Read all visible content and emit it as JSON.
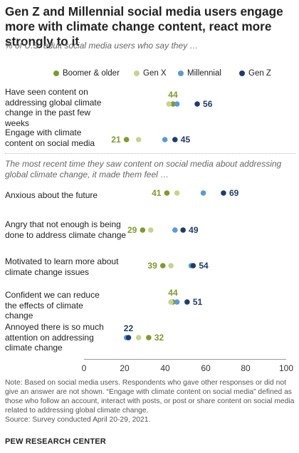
{
  "header": {
    "title": "Gen Z and Millennial social media users engage more with climate change content, react more strongly to it",
    "subtitle": "% of U.S. adult social media users who say they …"
  },
  "section_note": "The most recent time they saw content on social media about addressing global climate change, it made them feel …",
  "footer": {
    "note": "Note: Based on social media users. Respondents who gave other responses or did not give an answer are not shown. “Engage with climate content on social media” defined as those who follow an account, interact with posts, or post or share content on social media related to addressing global climate change.",
    "source": "Source: Survey conducted April 20-29, 2021.",
    "org": "PEW RESEARCH CENTER"
  },
  "chart_data": {
    "type": "scatter",
    "title": "Gen Z and Millennial social media users engage more with climate change content, react more strongly to it",
    "subtitle": "% of U.S. adult social media users who say they …",
    "xlim": [
      0,
      100
    ],
    "x_ticks": [
      "0",
      "20",
      "40",
      "60",
      "80",
      "100"
    ],
    "grid": false,
    "legend_position": "top",
    "categories": [
      "Have seen content on addressing global climate change in the past few weeks",
      "Engage with climate content on social media",
      "Anxious about the future",
      "Angry that not enough is being done to address climate change",
      "Motivated to learn more about climate change issues",
      "Confident we can reduce the effects of climate change",
      "Annoyed there is so much attention on addressing climate change"
    ],
    "series": [
      {
        "name": "Boomer & older",
        "color": "#7f9a2c",
        "values": [
          44,
          21,
          41,
          29,
          39,
          44,
          32
        ],
        "labeled": [
          true,
          true,
          true,
          true,
          true,
          true,
          true
        ],
        "label_side": [
          "above",
          "left",
          "left",
          "left",
          "left",
          "above",
          "right"
        ]
      },
      {
        "name": "Gen X",
        "color": "#c5d58f",
        "values": [
          42,
          27,
          46,
          33,
          43,
          43,
          27
        ],
        "labeled": [
          false,
          false,
          false,
          false,
          false,
          false,
          false
        ],
        "label_side": [
          "",
          "",
          "",
          "",
          "",
          "",
          ""
        ]
      },
      {
        "name": "Millennial",
        "color": "#5b9bd5",
        "values": [
          46,
          40,
          59,
          45,
          53,
          46,
          21
        ],
        "labeled": [
          false,
          false,
          false,
          false,
          false,
          false,
          false
        ],
        "label_side": [
          "",
          "",
          "",
          "",
          "",
          "",
          ""
        ]
      },
      {
        "name": "Gen Z",
        "color": "#1f3d6b",
        "values": [
          56,
          45,
          69,
          49,
          54,
          51,
          22
        ],
        "labeled": [
          true,
          true,
          true,
          true,
          true,
          true,
          true
        ],
        "label_side": [
          "right",
          "right",
          "right",
          "right",
          "right",
          "right",
          "above"
        ]
      }
    ]
  }
}
